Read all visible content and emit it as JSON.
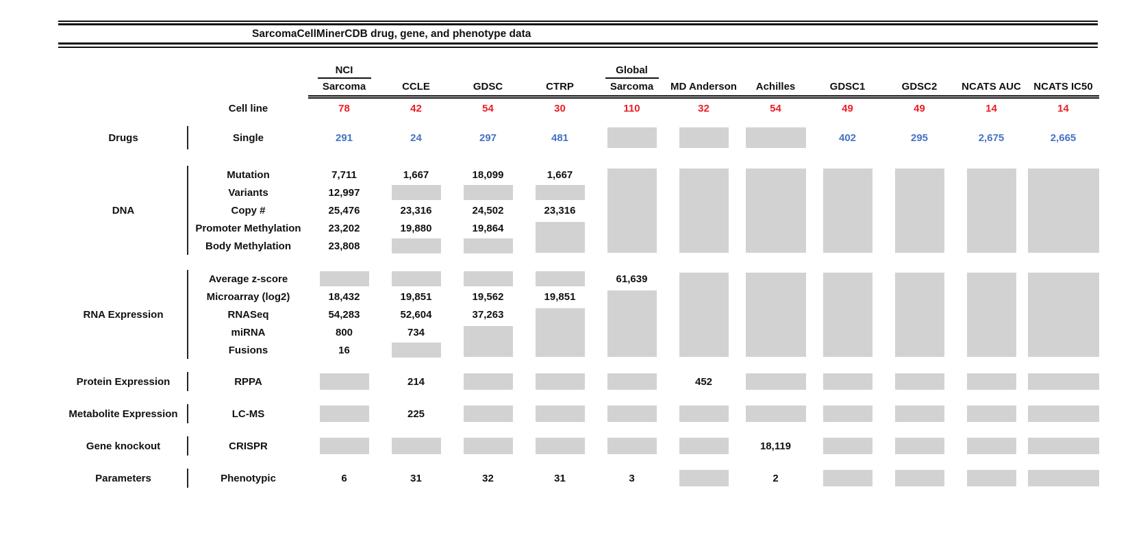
{
  "title": "SarcomaCellMinerCDB drug, gene, and phenotype data",
  "colors": {
    "gray_box": "#d2d2d2",
    "cell_line_red": "#ed1c24",
    "drug_blue": "#4472c4",
    "text_black": "#111111"
  },
  "header": {
    "cell_line_label": "Cell line",
    "columns": [
      {
        "top": "NCI",
        "label": "Sarcoma",
        "cell_lines": "78"
      },
      {
        "label": "CCLE",
        "cell_lines": "42"
      },
      {
        "label": "GDSC",
        "cell_lines": "54"
      },
      {
        "label": "CTRP",
        "cell_lines": "30"
      },
      {
        "top": "Global",
        "label": "Sarcoma",
        "cell_lines": "110"
      },
      {
        "label": "MD Anderson",
        "cell_lines": "32"
      },
      {
        "label": "Achilles",
        "cell_lines": "54"
      },
      {
        "label": "GDSC1",
        "cell_lines": "49"
      },
      {
        "label": "GDSC2",
        "cell_lines": "49"
      },
      {
        "label": "NCATS AUC",
        "cell_lines": "14"
      },
      {
        "label": "NCATS IC50",
        "cell_lines": "14"
      }
    ]
  },
  "sections": [
    {
      "name": "Drugs",
      "value_color": "blue",
      "rows": [
        {
          "label": "Single",
          "cells": [
            "291",
            "24",
            "297",
            "481",
            "#",
            "#",
            "#",
            "402",
            "295",
            "2,675",
            "2,665"
          ]
        }
      ]
    },
    {
      "name": "DNA",
      "rows": [
        {
          "label": "Mutation",
          "cells": [
            "7,711",
            "1,667",
            "18,099",
            "1,667",
            "#5",
            "#5",
            "#5",
            "#5",
            "#5",
            "#5",
            "#5"
          ]
        },
        {
          "label": "Variants",
          "cells": [
            "12,997",
            "#",
            "#",
            "#",
            "",
            "",
            "",
            "",
            "",
            "",
            ""
          ]
        },
        {
          "label": "Copy #",
          "cells": [
            "25,476",
            "23,316",
            "24,502",
            "23,316",
            "",
            "",
            "",
            "",
            "",
            "",
            ""
          ]
        },
        {
          "label": "Promoter Methylation",
          "cells": [
            "23,202",
            "19,880",
            "19,864",
            "#2",
            "",
            "",
            "",
            "",
            "",
            "",
            ""
          ]
        },
        {
          "label": "Body Methylation",
          "cells": [
            "23,808",
            "#",
            "#",
            "",
            "",
            "",
            "",
            "",
            "",
            "",
            ""
          ]
        }
      ]
    },
    {
      "name": "RNA Expression",
      "rows": [
        {
          "label": "Average z-score",
          "cells": [
            "#",
            "#",
            "#",
            "#",
            "61,639",
            "#5",
            "#5",
            "#5",
            "#5",
            "#5",
            "#5"
          ]
        },
        {
          "label": "Microarray (log2)",
          "cells": [
            "18,432",
            "19,851",
            "19,562",
            "19,851",
            "#4",
            "",
            "",
            "",
            "",
            "",
            ""
          ]
        },
        {
          "label": "RNASeq",
          "cells": [
            "54,283",
            "52,604",
            "37,263",
            "#3",
            "",
            "",
            "",
            "",
            "",
            "",
            ""
          ]
        },
        {
          "label": "miRNA",
          "cells": [
            "800",
            "734",
            "#2",
            "",
            "",
            "",
            "",
            "",
            "",
            "",
            ""
          ]
        },
        {
          "label": "Fusions",
          "cells": [
            "16",
            "#",
            "",
            "",
            "",
            "",
            "",
            "",
            "",
            "",
            ""
          ]
        }
      ]
    },
    {
      "name": "Protein Expression",
      "rows": [
        {
          "label": "RPPA",
          "cells": [
            "#",
            "214",
            "#",
            "#",
            "#",
            "452",
            "#",
            "#",
            "#",
            "#",
            "#"
          ]
        }
      ]
    },
    {
      "name": "Metabolite Expression",
      "rows": [
        {
          "label": "LC-MS",
          "cells": [
            "#",
            "225",
            "#",
            "#",
            "#",
            "#",
            "#",
            "#",
            "#",
            "#",
            "#"
          ]
        }
      ]
    },
    {
      "name": "Gene knockout",
      "rows": [
        {
          "label": "CRISPR",
          "cells": [
            "#",
            "#",
            "#",
            "#",
            "#",
            "#",
            "18,119",
            "#",
            "#",
            "#",
            "#"
          ]
        }
      ]
    },
    {
      "name": "Parameters",
      "rows": [
        {
          "label": "Phenotypic",
          "cells": [
            "6",
            "31",
            "32",
            "31",
            "3",
            "#",
            "2",
            "#",
            "#",
            "#",
            "#"
          ]
        }
      ]
    }
  ],
  "chart_data": {
    "type": "table",
    "title": "SarcomaCellMinerCDB drug, gene, and phenotype data",
    "columns": [
      "NCI Sarcoma",
      "CCLE",
      "GDSC",
      "CTRP",
      "Global Sarcoma",
      "MD Anderson",
      "Achilles",
      "GDSC1",
      "GDSC2",
      "NCATS AUC",
      "NCATS IC50"
    ],
    "cell_line_counts": [
      78,
      42,
      54,
      30,
      110,
      32,
      54,
      49,
      49,
      14,
      14
    ],
    "legend_note": "gray filled cells show no value (data not present)",
    "rows": [
      {
        "section": "Drugs",
        "measure": "Single",
        "values": [
          291,
          24,
          297,
          481,
          null,
          null,
          null,
          402,
          295,
          2675,
          2665
        ]
      },
      {
        "section": "DNA",
        "measure": "Mutation",
        "values": [
          7711,
          1667,
          18099,
          1667,
          null,
          null,
          null,
          null,
          null,
          null,
          null
        ]
      },
      {
        "section": "DNA",
        "measure": "Variants",
        "values": [
          12997,
          null,
          null,
          null,
          null,
          null,
          null,
          null,
          null,
          null,
          null
        ]
      },
      {
        "section": "DNA",
        "measure": "Copy #",
        "values": [
          25476,
          23316,
          24502,
          23316,
          null,
          null,
          null,
          null,
          null,
          null,
          null
        ]
      },
      {
        "section": "DNA",
        "measure": "Promoter Methylation",
        "values": [
          23202,
          19880,
          19864,
          null,
          null,
          null,
          null,
          null,
          null,
          null,
          null
        ]
      },
      {
        "section": "DNA",
        "measure": "Body Methylation",
        "values": [
          23808,
          null,
          null,
          null,
          null,
          null,
          null,
          null,
          null,
          null,
          null
        ]
      },
      {
        "section": "RNA Expression",
        "measure": "Average z-score",
        "values": [
          null,
          null,
          null,
          null,
          61639,
          null,
          null,
          null,
          null,
          null,
          null
        ]
      },
      {
        "section": "RNA Expression",
        "measure": "Microarray (log2)",
        "values": [
          18432,
          19851,
          19562,
          19851,
          null,
          null,
          null,
          null,
          null,
          null,
          null
        ]
      },
      {
        "section": "RNA Expression",
        "measure": "RNASeq",
        "values": [
          54283,
          52604,
          37263,
          null,
          null,
          null,
          null,
          null,
          null,
          null,
          null
        ]
      },
      {
        "section": "RNA Expression",
        "measure": "miRNA",
        "values": [
          800,
          734,
          null,
          null,
          null,
          null,
          null,
          null,
          null,
          null,
          null
        ]
      },
      {
        "section": "RNA Expression",
        "measure": "Fusions",
        "values": [
          16,
          null,
          null,
          null,
          null,
          null,
          null,
          null,
          null,
          null,
          null
        ]
      },
      {
        "section": "Protein Expression",
        "measure": "RPPA",
        "values": [
          null,
          214,
          null,
          null,
          null,
          452,
          null,
          null,
          null,
          null,
          null
        ]
      },
      {
        "section": "Metabolite Expression",
        "measure": "LC-MS",
        "values": [
          null,
          225,
          null,
          null,
          null,
          null,
          null,
          null,
          null,
          null,
          null
        ]
      },
      {
        "section": "Gene knockout",
        "measure": "CRISPR",
        "values": [
          null,
          null,
          null,
          null,
          null,
          null,
          18119,
          null,
          null,
          null,
          null
        ]
      },
      {
        "section": "Parameters",
        "measure": "Phenotypic",
        "values": [
          6,
          31,
          32,
          31,
          3,
          null,
          2,
          null,
          null,
          null,
          null
        ]
      }
    ]
  }
}
